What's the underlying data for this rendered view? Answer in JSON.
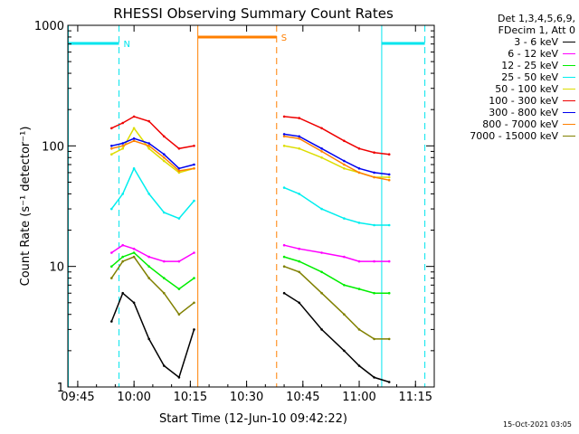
{
  "chart_data": {
    "type": "line",
    "title": "RHESSI Observing Summary Count Rates",
    "xlabel": "Start Time (12-Jun-10 09:42:22)",
    "ylabel": "Count Rate (s⁻¹ detector⁻¹)",
    "y_scale": "log",
    "ylim": [
      1,
      1000
    ],
    "xlim": [
      "09:42:22",
      "11:20:00"
    ],
    "x_ticks": [
      "09:45",
      "10:00",
      "10:15",
      "10:30",
      "10:45",
      "11:00",
      "11:15"
    ],
    "y_ticks": [
      "1",
      "10",
      "100",
      "1000"
    ],
    "legend_header": [
      "Det 1,3,4,5,6,9,",
      "FDecim 1, Att 0"
    ],
    "legend_position": "right, outside plot",
    "x_units": "time of day (HH:MM)",
    "data_gaps": [
      [
        "09:42:22",
        "09:54:00"
      ],
      [
        "10:17:00",
        "10:40:00"
      ],
      [
        "11:08:00",
        "11:20:00"
      ]
    ],
    "markers": [
      {
        "label": "N",
        "start": "09:42:30",
        "end": "09:56:00",
        "color": "#00e5ee",
        "kind": "night"
      },
      {
        "label": "S",
        "start": "10:17:00",
        "end": "10:38:00",
        "color": "#ff7f00",
        "kind": "SAA"
      },
      {
        "label": "",
        "start": "11:06:00",
        "end": "11:17:30",
        "color": "#00e5ee",
        "kind": "night"
      }
    ],
    "series": [
      {
        "name": "3 - 6 keV",
        "color": "#000000",
        "values": [
          [
            "09:54",
            3.5
          ],
          [
            "09:57",
            6
          ],
          [
            "10:00",
            5
          ],
          [
            "10:04",
            2.5
          ],
          [
            "10:08",
            1.5
          ],
          [
            "10:12",
            1.2
          ],
          [
            "10:16",
            3
          ],
          [
            "10:40",
            6
          ],
          [
            "10:44",
            5
          ],
          [
            "10:50",
            3
          ],
          [
            "10:56",
            2
          ],
          [
            "11:00",
            1.5
          ],
          [
            "11:04",
            1.2
          ],
          [
            "11:08",
            1.1
          ]
        ]
      },
      {
        "name": "6 - 12 keV",
        "color": "#ff00ff",
        "values": [
          [
            "09:54",
            13
          ],
          [
            "09:57",
            15
          ],
          [
            "10:00",
            14
          ],
          [
            "10:04",
            12
          ],
          [
            "10:08",
            11
          ],
          [
            "10:12",
            11
          ],
          [
            "10:16",
            13
          ],
          [
            "10:40",
            15
          ],
          [
            "10:44",
            14
          ],
          [
            "10:50",
            13
          ],
          [
            "10:56",
            12
          ],
          [
            "11:00",
            11
          ],
          [
            "11:04",
            11
          ],
          [
            "11:08",
            11
          ]
        ]
      },
      {
        "name": "12 - 25 keV",
        "color": "#00ee00",
        "values": [
          [
            "09:54",
            10
          ],
          [
            "09:57",
            12
          ],
          [
            "10:00",
            13
          ],
          [
            "10:04",
            10
          ],
          [
            "10:08",
            8
          ],
          [
            "10:12",
            6.5
          ],
          [
            "10:16",
            8
          ],
          [
            "10:40",
            12
          ],
          [
            "10:44",
            11
          ],
          [
            "10:50",
            9
          ],
          [
            "10:56",
            7
          ],
          [
            "11:00",
            6.5
          ],
          [
            "11:04",
            6
          ],
          [
            "11:08",
            6
          ]
        ]
      },
      {
        "name": "25 - 50 keV",
        "color": "#00eeee",
        "values": [
          [
            "09:54",
            30
          ],
          [
            "09:57",
            40
          ],
          [
            "10:00",
            65
          ],
          [
            "10:04",
            40
          ],
          [
            "10:08",
            28
          ],
          [
            "10:12",
            25
          ],
          [
            "10:16",
            35
          ],
          [
            "10:40",
            45
          ],
          [
            "10:44",
            40
          ],
          [
            "10:50",
            30
          ],
          [
            "10:56",
            25
          ],
          [
            "11:00",
            23
          ],
          [
            "11:04",
            22
          ],
          [
            "11:08",
            22
          ]
        ]
      },
      {
        "name": "50 - 100 keV",
        "color": "#dddd00",
        "values": [
          [
            "09:54",
            85
          ],
          [
            "09:57",
            95
          ],
          [
            "10:00",
            140
          ],
          [
            "10:04",
            95
          ],
          [
            "10:08",
            75
          ],
          [
            "10:12",
            60
          ],
          [
            "10:16",
            65
          ],
          [
            "10:40",
            100
          ],
          [
            "10:44",
            95
          ],
          [
            "10:50",
            80
          ],
          [
            "10:56",
            65
          ],
          [
            "11:00",
            60
          ],
          [
            "11:04",
            55
          ],
          [
            "11:08",
            55
          ]
        ]
      },
      {
        "name": "100 - 300 keV",
        "color": "#ee0000",
        "values": [
          [
            "09:54",
            140
          ],
          [
            "09:57",
            155
          ],
          [
            "10:00",
            175
          ],
          [
            "10:04",
            160
          ],
          [
            "10:08",
            120
          ],
          [
            "10:12",
            95
          ],
          [
            "10:16",
            100
          ],
          [
            "10:40",
            175
          ],
          [
            "10:44",
            170
          ],
          [
            "10:50",
            140
          ],
          [
            "10:56",
            110
          ],
          [
            "11:00",
            95
          ],
          [
            "11:04",
            88
          ],
          [
            "11:08",
            85
          ]
        ]
      },
      {
        "name": "300 - 800 keV",
        "color": "#0000ee",
        "values": [
          [
            "09:54",
            100
          ],
          [
            "09:57",
            105
          ],
          [
            "10:00",
            115
          ],
          [
            "10:04",
            105
          ],
          [
            "10:08",
            85
          ],
          [
            "10:12",
            65
          ],
          [
            "10:16",
            70
          ],
          [
            "10:40",
            125
          ],
          [
            "10:44",
            120
          ],
          [
            "10:50",
            95
          ],
          [
            "10:56",
            75
          ],
          [
            "11:00",
            65
          ],
          [
            "11:04",
            60
          ],
          [
            "11:08",
            58
          ]
        ]
      },
      {
        "name": "800 - 7000 keV",
        "color": "#ff8000",
        "values": [
          [
            "09:54",
            95
          ],
          [
            "09:57",
            100
          ],
          [
            "10:00",
            110
          ],
          [
            "10:04",
            100
          ],
          [
            "10:08",
            80
          ],
          [
            "10:12",
            62
          ],
          [
            "10:16",
            65
          ],
          [
            "10:40",
            120
          ],
          [
            "10:44",
            115
          ],
          [
            "10:50",
            90
          ],
          [
            "10:56",
            70
          ],
          [
            "11:00",
            60
          ],
          [
            "11:04",
            55
          ],
          [
            "11:08",
            52
          ]
        ]
      },
      {
        "name": "7000 - 15000 keV",
        "color": "#808000",
        "values": [
          [
            "09:54",
            8
          ],
          [
            "09:57",
            11
          ],
          [
            "10:00",
            12
          ],
          [
            "10:04",
            8
          ],
          [
            "10:08",
            6
          ],
          [
            "10:12",
            4
          ],
          [
            "10:16",
            5
          ],
          [
            "10:40",
            10
          ],
          [
            "10:44",
            9
          ],
          [
            "10:50",
            6
          ],
          [
            "10:56",
            4
          ],
          [
            "11:00",
            3
          ],
          [
            "11:04",
            2.5
          ],
          [
            "11:08",
            2.5
          ]
        ]
      }
    ]
  },
  "footer": {
    "date": "15-Oct-2021 03:05"
  }
}
